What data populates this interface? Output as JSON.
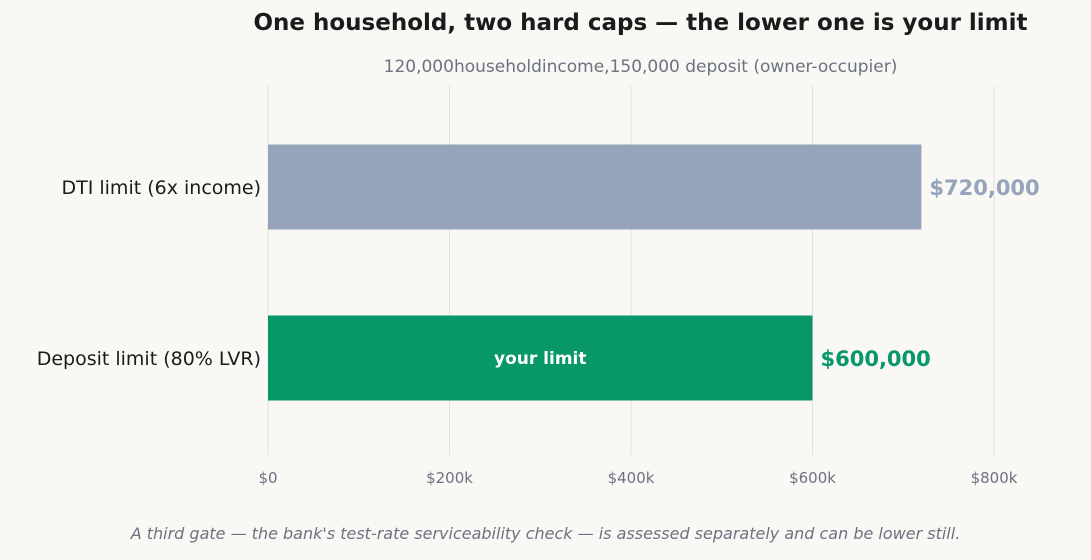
{
  "chart_data": {
    "type": "bar",
    "orientation": "horizontal",
    "title": "One household, two hard caps — the lower one is your limit",
    "subtitle": "120,000householdincome,150,000 deposit (owner-occupier)",
    "categories": [
      "DTI limit (6x income)",
      "Deposit limit (80% LVR)"
    ],
    "values": [
      720000,
      600000
    ],
    "value_labels": [
      "$720,000",
      "$600,000"
    ],
    "bar_colors": [
      "#95a4bb",
      "#079768"
    ],
    "inner_labels": [
      "",
      "your limit"
    ],
    "xlim": [
      0,
      900000
    ],
    "xticks": [
      0,
      200000,
      400000,
      600000,
      800000
    ],
    "xtick_labels": [
      "$0",
      "$200k",
      "$400k",
      "$600k",
      "$800k"
    ],
    "grid": true,
    "xlabel": "",
    "ylabel": ""
  },
  "footnote": "A third gate — the bank's test-rate serviceability check — is assessed separately and can be lower still."
}
